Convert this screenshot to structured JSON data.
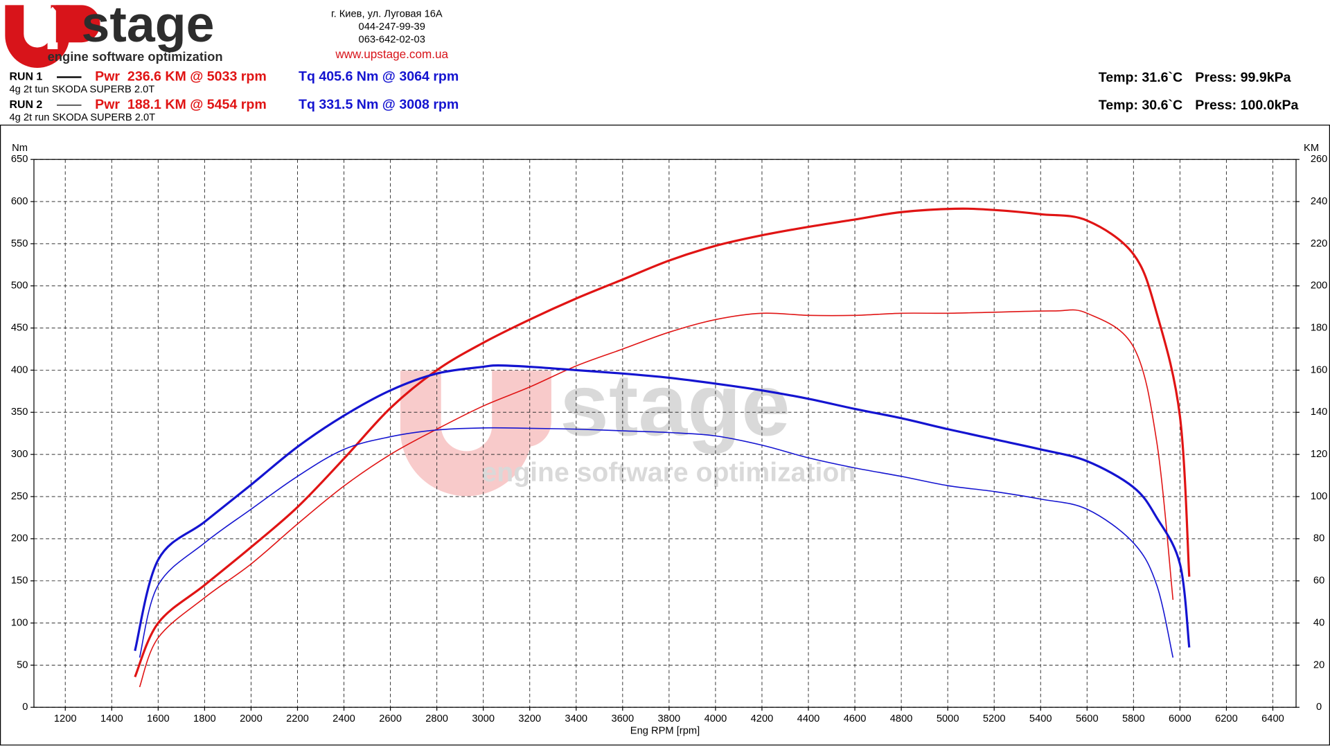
{
  "header": {
    "logo_text": "stage",
    "tagline": "engine software optimization",
    "address": "г. Киев, ул. Луговая 16А",
    "phone1": "044-247-99-39",
    "phone2": "063-642-02-03",
    "url": "www.upstage.com.ua",
    "runs": [
      {
        "label": "RUN 1",
        "description": "4g 2t tun SKODA SUPERB 2.0T",
        "power": "Pwr  236.6 KM @ 5033 rpm",
        "torque": "Tq 405.6 Nm @ 3064 rpm",
        "temp": "Temp: 31.6`C",
        "press": "Press: 99.9kPa"
      },
      {
        "label": "RUN 2",
        "description": "4g 2t run SKODA SUPERB 2.0T",
        "power": "Pwr  188.1 KM @ 5454 rpm",
        "torque": "Tq 331.5 Nm @ 3008 rpm",
        "temp": "Temp: 30.6`C",
        "press": "Press: 100.0kPa"
      }
    ]
  },
  "chart_data": {
    "type": "line",
    "x_label": "Eng RPM [rpm]",
    "y_label": "Nm",
    "y2_label": "KM",
    "grid": true,
    "xlim": [
      1065,
      6500
    ],
    "xticks": [
      1200,
      1400,
      1600,
      1800,
      2000,
      2200,
      2400,
      2600,
      2800,
      3000,
      3200,
      3400,
      3600,
      3800,
      4000,
      4200,
      4400,
      4600,
      4800,
      5000,
      5200,
      5400,
      5600,
      5800,
      6000,
      6200,
      6400
    ],
    "ylim": [
      0,
      650
    ],
    "yticks": [
      0,
      50,
      100,
      150,
      200,
      250,
      300,
      350,
      400,
      450,
      500,
      550,
      600,
      650
    ],
    "y2lim": [
      0,
      260
    ],
    "y2ticks": [
      0,
      20,
      40,
      60,
      80,
      100,
      120,
      140,
      160,
      180,
      200,
      220,
      240,
      260
    ],
    "series": [
      {
        "color": "#e01414",
        "line_width": 2.6,
        "axis": "y2",
        "x": [
          1500,
          1600,
          1800,
          2000,
          2200,
          2400,
          2600,
          2800,
          3000,
          3200,
          3400,
          3600,
          3800,
          4000,
          4200,
          4400,
          4600,
          4800,
          5033,
          5200,
          5400,
          5600,
          5800,
          5900,
          6000,
          6040
        ],
        "values": [
          14.4,
          40,
          58,
          76,
          95,
          118,
          142,
          160,
          173,
          184,
          194,
          203,
          212,
          219,
          224,
          228,
          231.5,
          235,
          236.6,
          236,
          234,
          231,
          215,
          187,
          138,
          62
        ]
      },
      {
        "color": "#e01414",
        "line_width": 1.3,
        "axis": "y2",
        "x": [
          1520,
          1600,
          1800,
          2000,
          2200,
          2400,
          2600,
          2800,
          3000,
          3200,
          3400,
          3600,
          3800,
          4000,
          4200,
          4400,
          4600,
          4800,
          5000,
          5200,
          5454,
          5600,
          5800,
          5900,
          5970
        ],
        "values": [
          9.6,
          33,
          52,
          68,
          87,
          105,
          120,
          132,
          143,
          152,
          162,
          170,
          178,
          184,
          187,
          186,
          186,
          187,
          187,
          187.5,
          188.1,
          187,
          171,
          126,
          51
        ]
      },
      {
        "color": "#1414d0",
        "line_width": 2.6,
        "x": [
          1500,
          1600,
          1800,
          2000,
          2200,
          2400,
          2600,
          2800,
          3000,
          3064,
          3200,
          3400,
          3600,
          3800,
          4000,
          4200,
          4400,
          4600,
          4800,
          5000,
          5200,
          5400,
          5600,
          5800,
          5900,
          6000,
          6040
        ],
        "values": [
          67,
          175,
          220,
          264,
          309,
          346,
          376,
          396,
          404,
          405.6,
          404,
          400,
          396,
          391,
          384,
          376,
          366,
          354,
          343,
          330,
          318,
          306,
          292,
          261,
          225,
          170,
          71
        ]
      },
      {
        "color": "#1414d0",
        "line_width": 1.3,
        "x": [
          1520,
          1600,
          1800,
          2000,
          2200,
          2400,
          2600,
          2800,
          3008,
          3200,
          3400,
          3600,
          3800,
          4000,
          4200,
          4400,
          4600,
          4800,
          5000,
          5200,
          5400,
          5600,
          5800,
          5900,
          5970
        ],
        "values": [
          59,
          145,
          195,
          235,
          274,
          306,
          321,
          329,
          331.5,
          331,
          330,
          328,
          326,
          322,
          311,
          296,
          284,
          274,
          263,
          256,
          247,
          235,
          195,
          145,
          59
        ]
      }
    ]
  }
}
